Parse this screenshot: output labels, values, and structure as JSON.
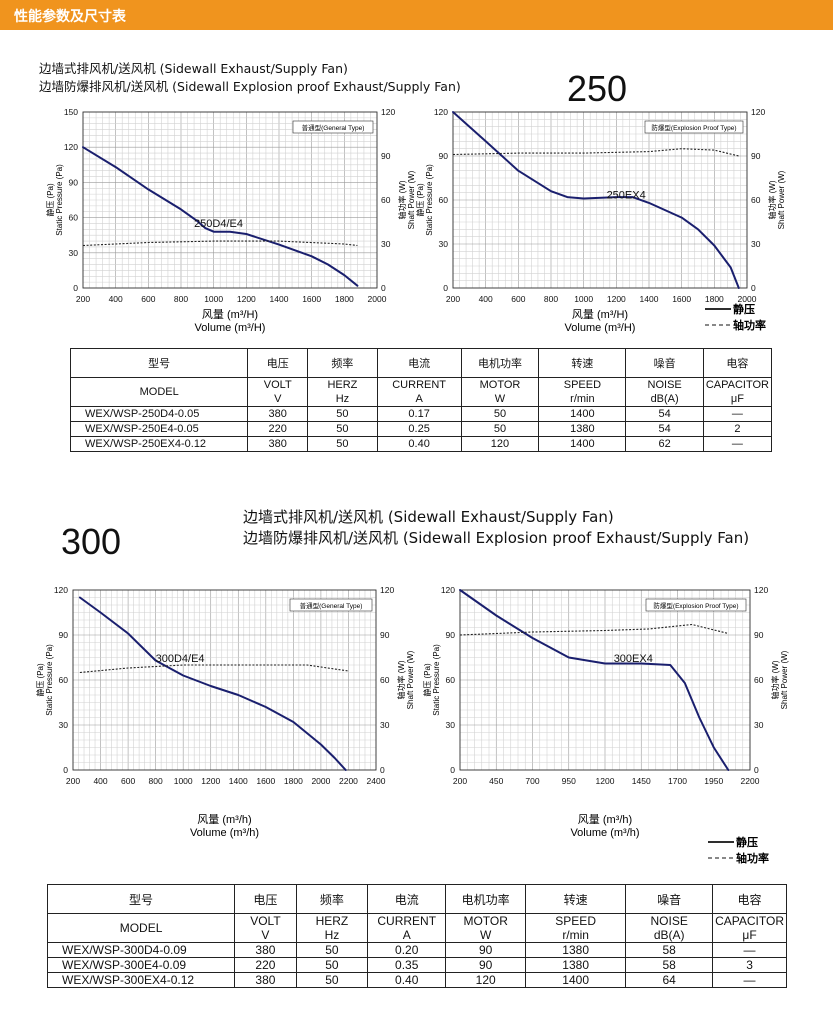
{
  "header": {
    "title": "性能参数及尺寸表"
  },
  "sections": [
    {
      "id": "250",
      "big_label": "250",
      "title_lines": [
        "边墙式排风机/送风机 (Sidewall Exhaust/Supply  Fan)",
        "边墙防爆排风机/送风机 (Sidewall Explosion proof Exhaust/Supply Fan)"
      ],
      "table": {
        "head_cn": [
          "型号",
          "电压",
          "频率",
          "电流",
          "电机功率",
          "转速",
          "噪音",
          "电容"
        ],
        "head_en": [
          "MODEL",
          "VOLT",
          "HERZ",
          "CURRENT",
          "MOTOR",
          "SPEED",
          "NOISE",
          "CAPACITOR"
        ],
        "units": [
          "V",
          "Hz",
          "A",
          "W",
          "r/min",
          "dB(A)",
          "μF"
        ],
        "rows": [
          [
            "WEX/WSP-250D4-0.05",
            "380",
            "50",
            "0.17",
            "50",
            "1400",
            "54",
            "—"
          ],
          [
            "WEX/WSP-250E4-0.05",
            "220",
            "50",
            "0.25",
            "50",
            "1380",
            "54",
            "2"
          ],
          [
            "WEX/WSP-250EX4-0.12",
            "380",
            "50",
            "0.40",
            "120",
            "1400",
            "62",
            "—"
          ]
        ]
      }
    },
    {
      "id": "300",
      "big_label": "300",
      "title_lines": [
        "边墙式排风机/送风机 (Sidewall Exhaust/Supply  Fan)",
        "边墙防爆排风机/送风机 (Sidewall Explosion proof Exhaust/Supply Fan)"
      ],
      "table": {
        "head_cn": [
          "型号",
          "电压",
          "频率",
          "电流",
          "电机功率",
          "转速",
          "噪音",
          "电容"
        ],
        "head_en": [
          "MODEL",
          "VOLT",
          "HERZ",
          "CURRENT",
          "MOTOR",
          "SPEED",
          "NOISE",
          "CAPACITOR"
        ],
        "units": [
          "V",
          "Hz",
          "A",
          "W",
          "r/min",
          "dB(A)",
          "μF"
        ],
        "rows": [
          [
            "WEX/WSP-300D4-0.09",
            "380",
            "50",
            "0.20",
            "90",
            "1380",
            "58",
            "—"
          ],
          [
            "WEX/WSP-300E4-0.09",
            "220",
            "50",
            "0.35",
            "90",
            "1380",
            "58",
            "3"
          ],
          [
            "WEX/WSP-300EX4-0.12",
            "380",
            "50",
            "0.40",
            "120",
            "1400",
            "64",
            "—"
          ]
        ]
      }
    }
  ],
  "legend": {
    "static_label": "静压",
    "power_label": "轴功率"
  },
  "chart_data": [
    {
      "id": "c250a",
      "type": "line",
      "type_label": "普通型(General Type)",
      "curve_label": "250D4/E4",
      "xlabel_cn": "风量 (m³/H)",
      "xlabel_en": "Volume (m³/H)",
      "ylabel_cn": "静压 (Pa)",
      "ylabel_en": "Static Pressure (Pa)",
      "y2label_cn": "轴功率 (W)",
      "y2label_en": "Shaft Power (W)",
      "xlim": [
        200,
        2000
      ],
      "xticks": [
        200,
        400,
        600,
        800,
        1000,
        1200,
        1400,
        1600,
        1800,
        2000
      ],
      "ylim": [
        0,
        150
      ],
      "yticks": [
        0,
        30,
        60,
        90,
        120,
        150
      ],
      "y2lim": [
        0,
        120
      ],
      "y2ticks": [
        0,
        30,
        60,
        90,
        120
      ],
      "grid": true,
      "series": [
        {
          "name": "静压",
          "style": "solid",
          "axis": "left",
          "x": [
            200,
            400,
            600,
            800,
            900,
            950,
            1000,
            1100,
            1200,
            1400,
            1600,
            1700,
            1800,
            1880
          ],
          "y": [
            120,
            103,
            84,
            67,
            57,
            51,
            48,
            48,
            46,
            37,
            27,
            20,
            11,
            2
          ]
        },
        {
          "name": "轴功率",
          "style": "dashed",
          "axis": "right",
          "x": [
            200,
            600,
            1000,
            1400,
            1800,
            1880
          ],
          "y": [
            29,
            31,
            32,
            32,
            30,
            29
          ]
        }
      ]
    },
    {
      "id": "c250b",
      "type": "line",
      "type_label": "防爆型(Explosion Proof Type)",
      "curve_label": "250EX4",
      "xlabel_cn": "风量 (m³/H)",
      "xlabel_en": "Volume (m³/H)",
      "ylabel_cn": "静压 (Pa)",
      "ylabel_en": "Static Pressure (Pa)",
      "y2label_cn": "轴功率 (W)",
      "y2label_en": "Shaft Power (W)",
      "xlim": [
        200,
        2000
      ],
      "xticks": [
        200,
        400,
        600,
        800,
        1000,
        1200,
        1400,
        1600,
        1800,
        2000
      ],
      "ylim": [
        0,
        120
      ],
      "yticks": [
        0,
        30,
        60,
        90,
        120
      ],
      "y2lim": [
        0,
        120
      ],
      "y2ticks": [
        0,
        30,
        60,
        90,
        120
      ],
      "grid": true,
      "legend": true,
      "series": [
        {
          "name": "静压",
          "style": "solid",
          "axis": "left",
          "x": [
            200,
            400,
            600,
            800,
            900,
            1000,
            1200,
            1300,
            1400,
            1600,
            1700,
            1800,
            1900,
            1950
          ],
          "y": [
            120,
            100,
            80,
            66,
            62,
            61,
            62,
            62,
            58,
            48,
            40,
            29,
            14,
            0
          ]
        },
        {
          "name": "轴功率",
          "style": "dashed",
          "axis": "right",
          "x": [
            200,
            600,
            1000,
            1400,
            1600,
            1800,
            1950
          ],
          "y": [
            91,
            92,
            92,
            93,
            95,
            94,
            90
          ]
        }
      ]
    },
    {
      "id": "c300a",
      "type": "line",
      "type_label": "普通型(General Type)",
      "curve_label": "300D4/E4",
      "xlabel_cn": "风量 (m³/h)",
      "xlabel_en": "Volume (m³/h)",
      "ylabel_cn": "静压 (Pa)",
      "ylabel_en": "Static Pressure (Pa)",
      "y2label_cn": "轴功率 (W)",
      "y2label_en": "Shaft Power (W)",
      "xlim": [
        200,
        2400
      ],
      "xticks": [
        200,
        400,
        600,
        800,
        1000,
        1200,
        1400,
        1600,
        1800,
        2000,
        2200,
        2400
      ],
      "ylim": [
        0,
        120
      ],
      "yticks": [
        0,
        30,
        60,
        90,
        120
      ],
      "y2lim": [
        0,
        120
      ],
      "y2ticks": [
        0,
        30,
        60,
        90,
        120
      ],
      "grid": true,
      "series": [
        {
          "name": "静压",
          "style": "solid",
          "axis": "left",
          "x": [
            250,
            400,
            600,
            800,
            1000,
            1200,
            1400,
            1600,
            1800,
            2000,
            2100,
            2180
          ],
          "y": [
            115,
            105,
            91,
            73,
            63,
            56,
            50,
            42,
            32,
            17,
            8,
            0
          ]
        },
        {
          "name": "轴功率",
          "style": "dashed",
          "axis": "right",
          "x": [
            250,
            600,
            1000,
            1400,
            1900,
            2200
          ],
          "y": [
            65,
            68,
            70,
            70,
            70,
            66
          ]
        }
      ]
    },
    {
      "id": "c300b",
      "type": "line",
      "type_label": "防爆型(Explosion Proof Type)",
      "curve_label": "300EX4",
      "xlabel_cn": "风量 (m³/h)",
      "xlabel_en": "Volume (m³/h)",
      "ylabel_cn": "静压 (Pa)",
      "ylabel_en": "Static Pressure (Pa)",
      "y2label_cn": "轴功率 (W)",
      "y2label_en": "Shaft Power (W)",
      "xlim": [
        200,
        2200
      ],
      "xticks": [
        200,
        450,
        700,
        950,
        1200,
        1450,
        1700,
        1950,
        2200
      ],
      "ylim": [
        0,
        120
      ],
      "yticks": [
        0,
        30,
        60,
        90,
        120
      ],
      "y2lim": [
        0,
        120
      ],
      "y2ticks": [
        0,
        30,
        60,
        90,
        120
      ],
      "grid": true,
      "legend": true,
      "series": [
        {
          "name": "静压",
          "style": "solid",
          "axis": "left",
          "x": [
            200,
            450,
            700,
            950,
            1200,
            1450,
            1650,
            1750,
            1850,
            1950,
            2050
          ],
          "y": [
            120,
            103,
            88,
            75,
            71,
            71,
            70,
            58,
            35,
            15,
            0
          ]
        },
        {
          "name": "轴功率",
          "style": "dashed",
          "axis": "right",
          "x": [
            200,
            700,
            1200,
            1500,
            1800,
            2050
          ],
          "y": [
            90,
            92,
            93,
            94,
            97,
            91
          ]
        }
      ]
    }
  ]
}
